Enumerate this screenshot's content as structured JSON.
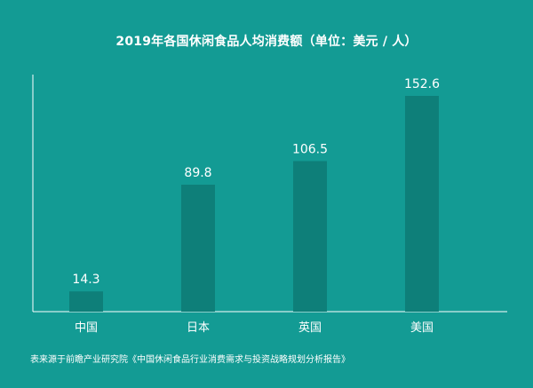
{
  "title": "2019年各国休闲食品人均消费额（单位：美元 / 人）",
  "source": "表来源于前瞻产业研究院《中国休闲食品行业消费需求与投资战略规划分析报告》",
  "colors": {
    "background": "#139b94",
    "bar": "#0e7f79",
    "axis": "#ffffff",
    "text": "#ffffff"
  },
  "chart_data": {
    "type": "bar",
    "title": "2019年各国休闲食品人均消费额（单位：美元 / 人）",
    "categories": [
      "中国",
      "日本",
      "英国",
      "美国"
    ],
    "values": [
      14.3,
      89.8,
      106.5,
      152.6
    ],
    "value_labels": [
      "14.3",
      "89.8",
      "106.5",
      "152.6"
    ],
    "xlabel": "",
    "ylabel": "",
    "ylim": [
      0,
      152.6
    ],
    "grid": false,
    "legend": "none"
  }
}
